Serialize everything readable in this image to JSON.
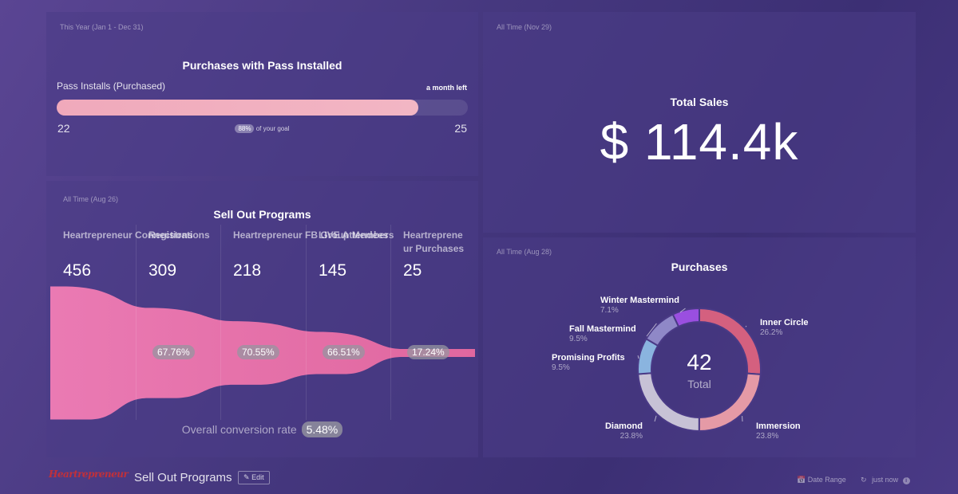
{
  "progress_panel": {
    "period": "This Year (Jan 1 - Dec 31)",
    "title": "Purchases with Pass Installed",
    "metric_label": "Pass Installs (Purchased)",
    "time_left": "a month left",
    "start_value": "22",
    "goal_value": "25",
    "percent_label": "88%",
    "percent_suffix": "of your goal",
    "progress_fraction": 0.88
  },
  "sales_panel": {
    "period": "All Time (Nov 29)",
    "title": "Total Sales",
    "value": "$ 114.4k"
  },
  "funnel_panel": {
    "period": "All Time (Aug 26)",
    "title": "Sell Out Programs",
    "overall_label": "Overall conversion rate",
    "overall_value": "5.48%",
    "chart_data": {
      "type": "funnel",
      "stages": [
        {
          "label": "Heartrepreneur Connections",
          "value": 456
        },
        {
          "label": "Registrations",
          "value": 309
        },
        {
          "label": "Heartrepreneur FB Group Members",
          "value": 218
        },
        {
          "label": "LIVE Attendees",
          "value": 145
        },
        {
          "label": "Heartrepreneur Purchases",
          "value": 25
        }
      ],
      "stage_label_lines": [
        [
          "Heartrepreneur Connections"
        ],
        [
          "Registrations"
        ],
        [
          "Heartrepreneur FB Group Members"
        ],
        [
          "LIVE Attendees"
        ],
        [
          "Heartreprene",
          "ur Purchases"
        ]
      ],
      "conversion_rates": [
        "67.76%",
        "70.55%",
        "66.51%",
        "17.24%"
      ],
      "color": "#e46fa9"
    }
  },
  "donut_panel": {
    "period": "All Time (Aug 28)",
    "title": "Purchases",
    "center_value": "42",
    "center_label": "Total",
    "chart_data": {
      "type": "pie",
      "total": 42,
      "slices": [
        {
          "name": "Inner Circle",
          "percent": "26.2%",
          "value": 26.2,
          "color": "#d4607f"
        },
        {
          "name": "Immersion",
          "percent": "23.8%",
          "value": 23.8,
          "color": "#e59aa6"
        },
        {
          "name": "Diamond",
          "percent": "23.8%",
          "value": 23.8,
          "color": "#c7c2d6"
        },
        {
          "name": "Promising Profits",
          "percent": "9.5%",
          "value": 9.5,
          "color": "#8ab4df"
        },
        {
          "name": "Fall Mastermind",
          "percent": "9.5%",
          "value": 9.5,
          "color": "#8f88c7"
        },
        {
          "name": "Winter Mastermind",
          "percent": "7.1%",
          "value": 7.1,
          "color": "#9a4fe0"
        }
      ]
    }
  },
  "footer": {
    "logo_text": "Heartrepreneur",
    "dashboard_title": "Sell Out Programs",
    "edit_label": "Edit",
    "date_range_label": "Date Range",
    "refresh_label": "just now",
    "calendar_icon": "calendar-icon",
    "refresh_icon": "refresh-icon",
    "info_icon": "info-icon"
  }
}
